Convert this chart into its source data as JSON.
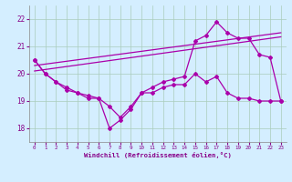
{
  "title": "",
  "xlabel": "Windchill (Refroidissement éolien,°C)",
  "ylabel": "",
  "xlim": [
    -0.5,
    23.5
  ],
  "ylim": [
    17.5,
    22.5
  ],
  "yticks": [
    18,
    19,
    20,
    21,
    22
  ],
  "xticks": [
    0,
    1,
    2,
    3,
    4,
    5,
    6,
    7,
    8,
    9,
    10,
    11,
    12,
    13,
    14,
    15,
    16,
    17,
    18,
    19,
    20,
    21,
    22,
    23
  ],
  "bg_color": "#d4eeff",
  "grid_color": "#aaccbb",
  "line_color": "#aa00aa",
  "line1_x": [
    0,
    1,
    2,
    3,
    4,
    5,
    6,
    7,
    8,
    9,
    10,
    11,
    12,
    13,
    14,
    15,
    16,
    17,
    18,
    19,
    20,
    21,
    22,
    23
  ],
  "line1_y": [
    20.5,
    20.0,
    19.7,
    19.5,
    19.3,
    19.1,
    19.1,
    18.0,
    18.3,
    18.7,
    19.3,
    19.3,
    19.5,
    19.6,
    19.6,
    20.0,
    19.7,
    19.9,
    19.3,
    19.1,
    19.1,
    19.0,
    19.0,
    19.0
  ],
  "line2_x": [
    0,
    1,
    2,
    3,
    4,
    5,
    6,
    7,
    8,
    9,
    10,
    11,
    12,
    13,
    14,
    15,
    16,
    17,
    18,
    19,
    20,
    21,
    22,
    23
  ],
  "line2_y": [
    20.5,
    20.0,
    19.7,
    19.4,
    19.3,
    19.2,
    19.1,
    18.8,
    18.4,
    18.8,
    19.3,
    19.5,
    19.7,
    19.8,
    19.9,
    21.2,
    21.4,
    21.9,
    21.5,
    21.3,
    21.3,
    20.7,
    20.6,
    19.0
  ],
  "line3_x": [
    0,
    23
  ],
  "line3_y": [
    20.1,
    21.35
  ],
  "line4_x": [
    0,
    23
  ],
  "line4_y": [
    20.3,
    21.5
  ]
}
